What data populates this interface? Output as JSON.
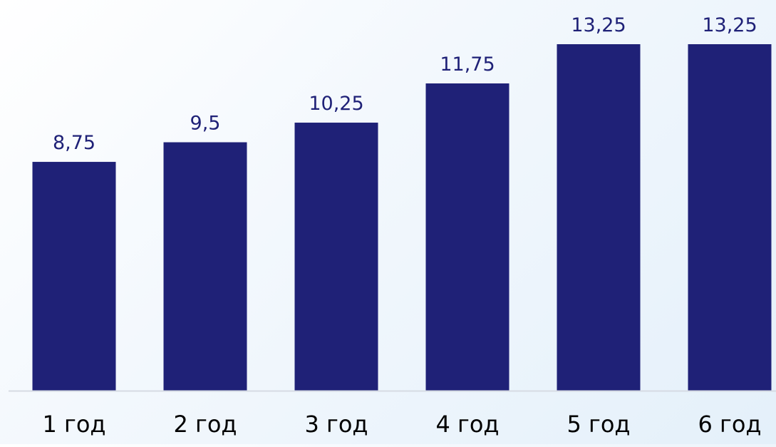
{
  "chart_data": {
    "type": "bar",
    "categories": [
      "1 год",
      "2 год",
      "3 год",
      "4 год",
      "5 год",
      "6 год"
    ],
    "values": [
      8.75,
      9.5,
      10.25,
      11.75,
      13.25,
      13.25
    ],
    "value_labels": [
      "8,75",
      "9,5",
      "10,25",
      "11,75",
      "13,25",
      "13,25"
    ],
    "title": "",
    "xlabel": "",
    "ylabel": "",
    "ylim": [
      0,
      13.25
    ],
    "grid": false,
    "legend": "none",
    "colors": {
      "bar": "#1f2177",
      "data_label": "#1f2177",
      "category_label": "#000000",
      "axis_line": "#d6dbe3"
    }
  }
}
